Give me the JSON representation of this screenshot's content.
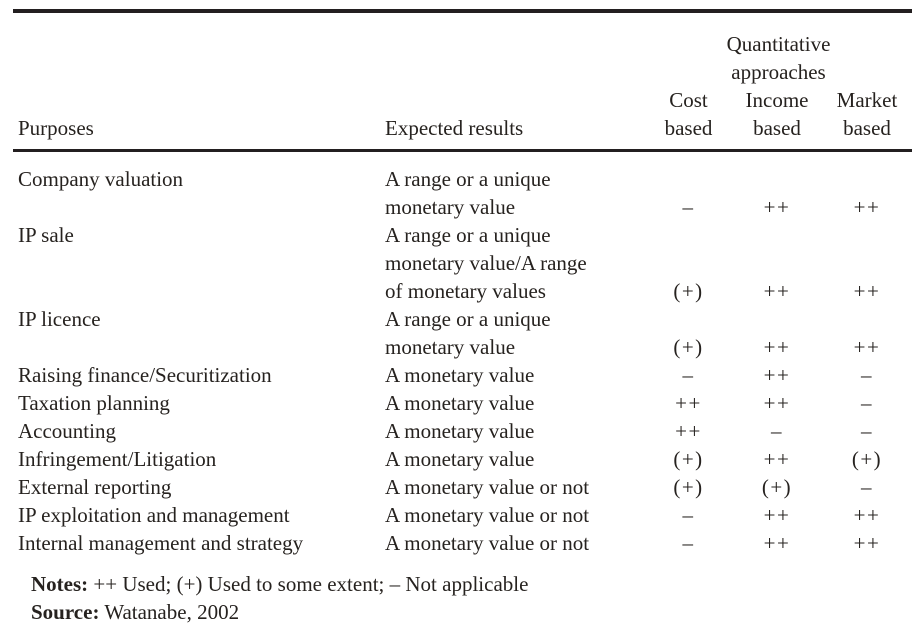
{
  "colors": {
    "text": "#26221f",
    "rule": "#231f20",
    "background": "#ffffff"
  },
  "table": {
    "headers": {
      "purposes": "Purposes",
      "expected": "Expected results",
      "group": "Quantitative approaches",
      "cost": "Cost based",
      "income": "Income based",
      "market": "Market based"
    },
    "rows": [
      {
        "purpose": "Company valuation",
        "expected": [
          "A range or a unique",
          "monetary value"
        ],
        "cost": "–",
        "income": "++",
        "market": "++"
      },
      {
        "purpose": "IP sale",
        "expected": [
          "A range or a unique",
          "monetary value/A range",
          "of monetary values"
        ],
        "cost": "(+)",
        "income": "++",
        "market": "++"
      },
      {
        "purpose": "IP licence",
        "expected": [
          "A range or a unique",
          "monetary value"
        ],
        "cost": "(+)",
        "income": "++",
        "market": "++"
      },
      {
        "purpose": "Raising finance/Securitization",
        "expected": [
          "A monetary value"
        ],
        "cost": "–",
        "income": "++",
        "market": "–"
      },
      {
        "purpose": "Taxation planning",
        "expected": [
          "A monetary value"
        ],
        "cost": "++",
        "income": "++",
        "market": "–"
      },
      {
        "purpose": "Accounting",
        "expected": [
          "A monetary value"
        ],
        "cost": "++",
        "income": "–",
        "market": "–"
      },
      {
        "purpose": "Infringement/Litigation",
        "expected": [
          "A monetary value"
        ],
        "cost": "(+)",
        "income": "++",
        "market": "(+)"
      },
      {
        "purpose": "External reporting",
        "expected": [
          "A monetary value or not"
        ],
        "cost": "(+)",
        "income": "(+)",
        "market": "–"
      },
      {
        "purpose": "IP exploitation and management",
        "expected": [
          "A monetary value or not"
        ],
        "cost": "–",
        "income": "++",
        "market": "++"
      },
      {
        "purpose": "Internal management and strategy",
        "expected": [
          "A monetary value or not"
        ],
        "cost": "–",
        "income": "++",
        "market": "++"
      }
    ]
  },
  "footer": {
    "notes_label": "Notes:",
    "notes_text": "++ Used; (+) Used to some extent; – Not applicable",
    "source_label": "Source:",
    "source_text": "Watanabe, 2002"
  }
}
